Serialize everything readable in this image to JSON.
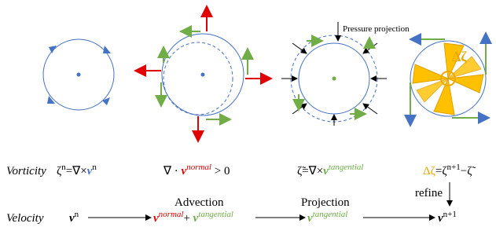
{
  "diagram": {
    "annotation": "Pressure projection",
    "delta_label": "Δζ"
  },
  "vorticity": {
    "label": "Vorticity",
    "formula_1": [
      "ζ",
      "n",
      "=∇×",
      "v",
      "n"
    ],
    "formula_2": [
      "∇ · ",
      "v",
      "normal",
      " > 0"
    ],
    "formula_3": [
      "ζ̃=∇×",
      "v",
      "tangential"
    ],
    "formula_4": [
      "Δζ",
      "=ζ",
      "n+1",
      "−ζ̃"
    ],
    "refine": "refine"
  },
  "velocity": {
    "label": "Velocity",
    "step_1": "Advection",
    "step_2": "Projection",
    "state_1": [
      "v",
      "n"
    ],
    "state_2": [
      "v",
      "normal",
      "+ ",
      "v",
      "tangential"
    ],
    "state_3": [
      "v",
      "tangential"
    ],
    "state_4": [
      "v",
      "n+1"
    ]
  }
}
